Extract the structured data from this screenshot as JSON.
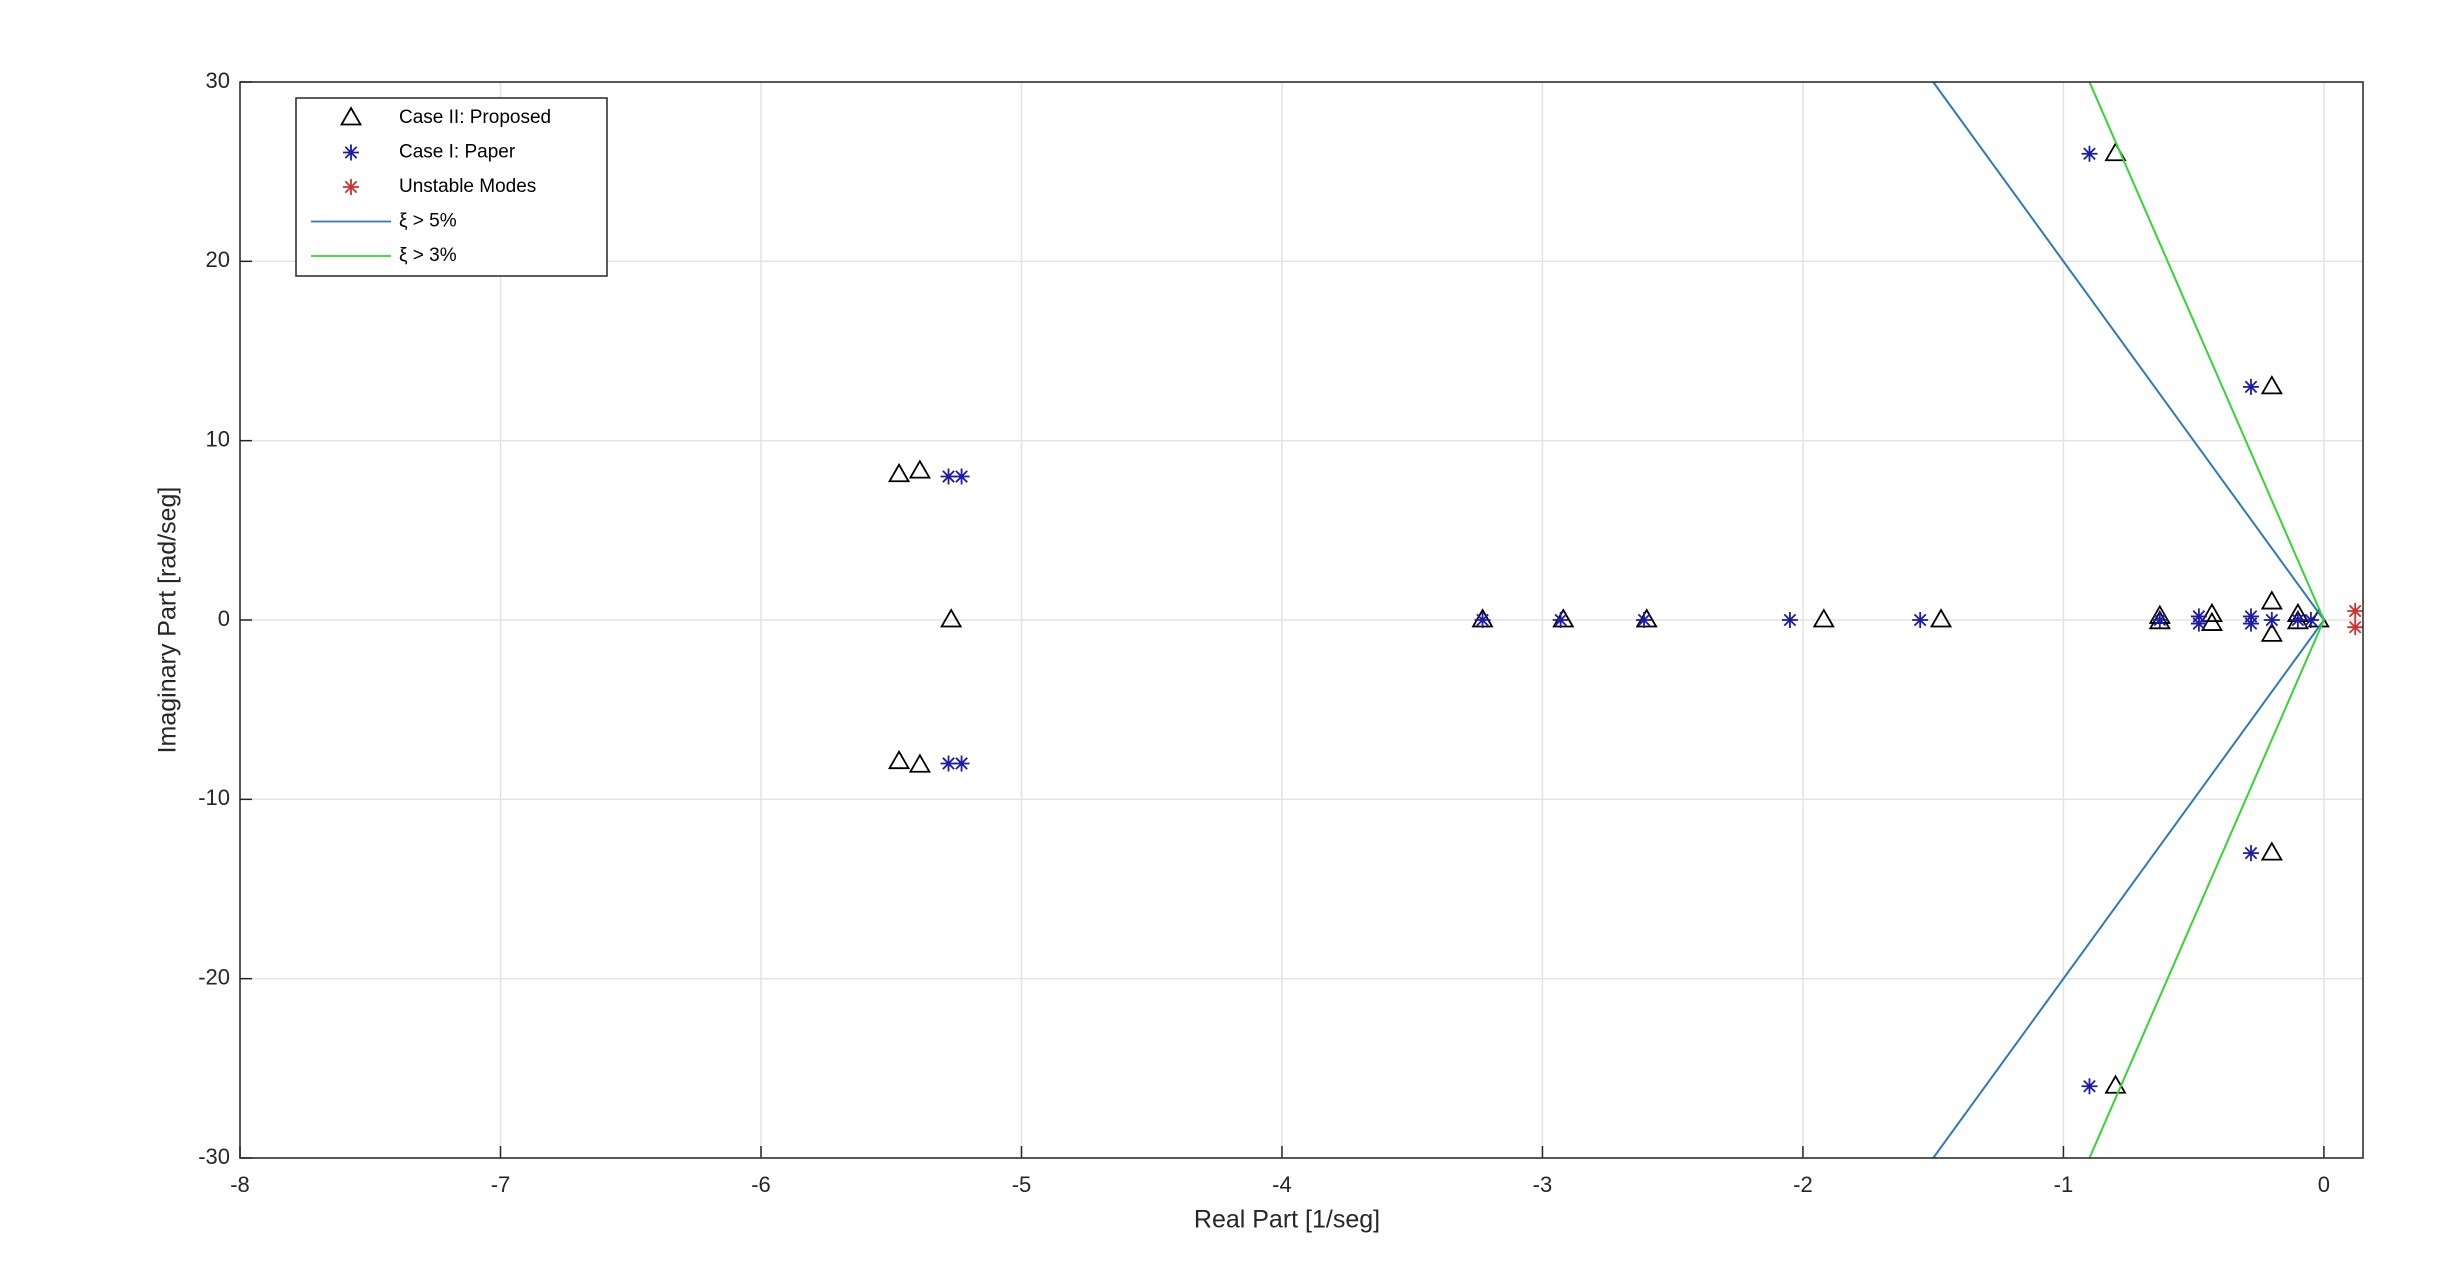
{
  "chart_data": {
    "type": "scatter",
    "xlabel": "Real Part [1/seg]",
    "ylabel": "Imaginary Part [rad/seg]",
    "xlim": [
      -8,
      0.15
    ],
    "ylim": [
      -30,
      30
    ],
    "xticks": [
      -8,
      -7,
      -6,
      -5,
      -4,
      -3,
      -2,
      -1,
      0
    ],
    "yticks": [
      -30,
      -20,
      -10,
      0,
      10,
      20,
      30
    ],
    "grid": true,
    "legend": "upper left",
    "series": [
      {
        "name": "Case II: Proposed",
        "color": "#000000",
        "marker": "triangle",
        "x": [
          -5.47,
          -5.39,
          -5.27,
          -5.47,
          -5.39,
          -3.23,
          -2.92,
          -2.6,
          -1.92,
          -1.47,
          -0.63,
          -0.63,
          -0.43,
          -0.43,
          -0.2,
          -0.2,
          -0.1,
          -0.1,
          -0.2,
          -0.2,
          -0.8,
          -0.8,
          -0.02
        ],
        "values": [
          8.1,
          8.3,
          0,
          -7.9,
          -8.1,
          0,
          0,
          0,
          0,
          0,
          0.2,
          -0.1,
          0.3,
          -0.2,
          1,
          -0.8,
          0.3,
          -0.1,
          13,
          -13,
          26,
          -26,
          0
        ]
      },
      {
        "name": "Case I: Paper",
        "color": "#1c1ca8",
        "marker": "asterisk",
        "x": [
          -5.28,
          -5.23,
          -5.28,
          -5.23,
          -3.23,
          -2.93,
          -2.61,
          -2.05,
          -1.55,
          -0.63,
          -0.48,
          -0.48,
          -0.28,
          -0.28,
          -0.2,
          -0.1,
          -0.05,
          -0.28,
          -0.28,
          -0.9,
          -0.9
        ],
        "values": [
          8,
          8,
          -8,
          -8,
          0,
          0,
          0,
          0,
          0,
          0,
          0.2,
          -0.2,
          0.2,
          -0.2,
          0,
          0,
          0,
          13,
          -13,
          26,
          -26
        ]
      },
      {
        "name": "Unstable Modes",
        "color": "#d03030",
        "marker": "asterisk",
        "x": [
          0.12,
          0.12
        ],
        "values": [
          0.5,
          -0.4
        ]
      },
      {
        "name": "ξ > 5%",
        "color": "#2e7ab8",
        "marker": "line",
        "x": [
          -1.5,
          0,
          -1.5
        ],
        "values": [
          30,
          0,
          -30
        ]
      },
      {
        "name": "ξ > 3%",
        "color": "#33d633",
        "marker": "line",
        "x": [
          -0.9,
          0,
          -0.9
        ],
        "values": [
          30,
          0,
          -30
        ]
      }
    ]
  }
}
